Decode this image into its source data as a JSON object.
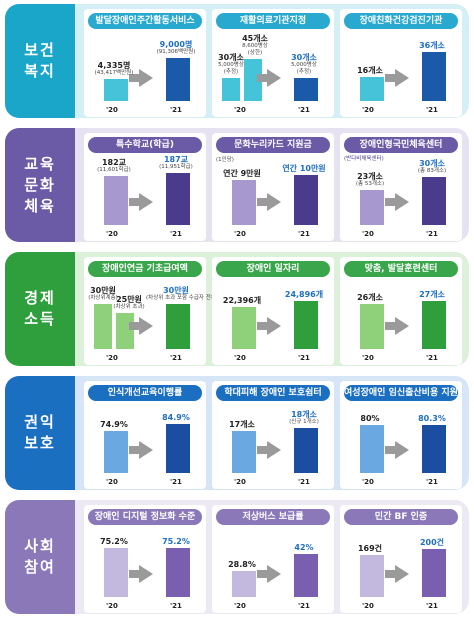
{
  "colors": {
    "row1": {
      "side": "#1aa6c9",
      "strip": "#d5eff6",
      "pill": "#29a9cf",
      "bar": "#45c3d8",
      "bar2": "#1b5aa8"
    },
    "row2": {
      "side": "#6b5aa6",
      "strip": "#e6e2f1",
      "pill": "#6b5aa6",
      "bar": "#a898d0",
      "bar2": "#4b3b8c"
    },
    "row3": {
      "side": "#2f9f3e",
      "strip": "#dcf0da",
      "pill": "#3aa64b",
      "bar": "#8fd17a",
      "bar2": "#2f9f3e"
    },
    "row4": {
      "side": "#1b6fc0",
      "strip": "#d6e6f6",
      "pill": "#1b6fc0",
      "bar": "#6aa8e2",
      "bar2": "#1b4ea0"
    },
    "row5": {
      "side": "#8a78b8",
      "strip": "#ece8f4",
      "pill": "#8a78b8",
      "bar": "#c3b8de",
      "bar2": "#7a5fb0"
    }
  },
  "years": {
    "y20": "'20",
    "y21": "'21"
  },
  "rows": [
    {
      "label_lines": [
        "보건",
        "복지"
      ],
      "cards": [
        {
          "title": "발달장애인주간활동서비스",
          "v20": "4,335명",
          "v20_sub": "(43,417백만원)",
          "v21": "9,000명",
          "v21_sub": "(91,306백만원)",
          "level20": 0.3,
          "level21": 0.6
        },
        {
          "title": "재활의료기관지정",
          "v20": "30개소",
          "v20_sub": "5,000병상",
          "v20_sub2": "(추정)",
          "v20b": "45개소",
          "v20b_sub": "8,600병상",
          "v20b_sub2": "(상한)",
          "v21": "30개소",
          "v21_sub": "5,000병상",
          "v21_sub2": "(추정)",
          "level20": 0.32,
          "level20b": 0.58,
          "level21": 0.32
        },
        {
          "title": "장애친화건강검진기관",
          "v20": "16개소",
          "v21": "36개소",
          "level20": 0.33,
          "level21": 0.68
        }
      ]
    },
    {
      "label_lines": [
        "교육",
        "문화",
        "체육"
      ],
      "cards": [
        {
          "title": "특수학교(학급)",
          "v20": "182교",
          "v20_sub": "(11,601학급)",
          "v21": "187교",
          "v21_sub": "(11,951학급)",
          "level20": 0.68,
          "level21": 0.72
        },
        {
          "title": "문화누리카드 지원금",
          "v20": "연간 9만원",
          "v20_note": "(1인당)",
          "v21": "연간 10만원",
          "level20": 0.62,
          "level21": 0.7
        },
        {
          "title": "장애인형국민체육센터",
          "v20": "23개소",
          "v20_sub": "(총 53개소)",
          "v20_tag": "(반다비체육센터)",
          "v21": "30개소",
          "v21_sub": "(총 83개소)",
          "level20": 0.48,
          "level21": 0.66
        }
      ]
    },
    {
      "label_lines": [
        "경제",
        "소득"
      ],
      "cards": [
        {
          "title": "장애인연금 기초급여액",
          "v20": "30만원",
          "v20_note": "(차상위계층)",
          "v20b": "25만원",
          "v20b_note": "(차상위 초과)",
          "v21": "30만원",
          "v21_note": "(차상위 초과 포함 수급자 전체)",
          "level20": 0.62,
          "level20b": 0.5,
          "level21": 0.62
        },
        {
          "title": "장애인 일자리",
          "v20": "22,396개",
          "v21": "24,896개",
          "level20": 0.58,
          "level21": 0.66
        },
        {
          "title": "맞춤, 발달훈련센터",
          "v20": "26개소",
          "v21": "27개소",
          "level20": 0.62,
          "level21": 0.66
        }
      ]
    },
    {
      "label_lines": [
        "권익",
        "보호"
      ],
      "cards": [
        {
          "title": "인식개선교육이행률",
          "v20": "74.9%",
          "v21": "84.9%",
          "level20": 0.58,
          "level21": 0.68
        },
        {
          "title": "학대피해 장애인 보호쉼터",
          "v20": "17개소",
          "v21": "18개소",
          "v21_sub": "(신규 1개소)",
          "level20": 0.58,
          "level21": 0.62
        },
        {
          "title": "여성장애인 임신출산비용 지원",
          "v20": "80%",
          "v21": "80.3%",
          "level20": 0.66,
          "level21": 0.66
        }
      ]
    },
    {
      "label_lines": [
        "사회",
        "참여"
      ],
      "cards": [
        {
          "title": "장애인 디지털 정보화 수준",
          "v20": "75.2%",
          "v21": "75.2%",
          "level20": 0.68,
          "level21": 0.68
        },
        {
          "title": "저상버스 보급률",
          "v20": "28.8%",
          "v21": "42%",
          "level20": 0.36,
          "level21": 0.6
        },
        {
          "title": "민간 BF 인증",
          "v20": "169건",
          "v21": "200건",
          "level20": 0.58,
          "level21": 0.66
        }
      ]
    }
  ]
}
